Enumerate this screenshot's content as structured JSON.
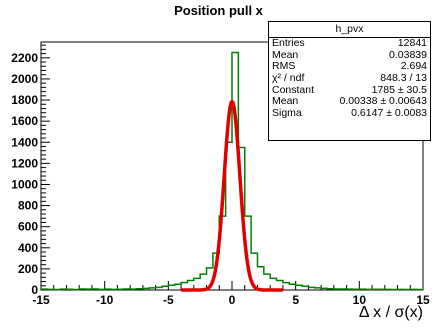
{
  "chart_data": {
    "type": "histogram",
    "title": "Position pull x",
    "xlabel": "Δ x / σ(x)",
    "ylabel": "",
    "xlim": [
      -15,
      15
    ],
    "ylim": [
      0,
      2350
    ],
    "x_ticks": [
      -15,
      -10,
      -5,
      0,
      5,
      10,
      15
    ],
    "y_ticks": [
      0,
      200,
      400,
      600,
      800,
      1000,
      1200,
      1400,
      1600,
      1800,
      2000,
      2200
    ],
    "bin_width": 0.5,
    "histogram": {
      "name": "h_pvx",
      "color": "#008000",
      "bins_x": [
        -15,
        -14.5,
        -14,
        -13.5,
        -13,
        -12.5,
        -12,
        -11.5,
        -11,
        -10.5,
        -10,
        -9.5,
        -9,
        -8.5,
        -8,
        -7.5,
        -7,
        -6.5,
        -6,
        -5.5,
        -5,
        -4.5,
        -4,
        -3.5,
        -3,
        -2.5,
        -2,
        -1.5,
        -1,
        -0.5,
        0,
        0.5,
        1,
        1.5,
        2,
        2.5,
        3,
        3.5,
        4,
        4.5,
        5,
        5.5,
        6,
        6.5,
        7,
        7.5,
        8,
        8.5,
        9,
        9.5,
        10,
        10.5,
        11,
        11.5,
        12,
        12.5,
        13,
        13.5,
        14,
        14.5
      ],
      "counts": [
        8,
        6,
        5,
        8,
        7,
        5,
        9,
        8,
        10,
        6,
        8,
        6,
        7,
        9,
        8,
        12,
        15,
        20,
        25,
        35,
        45,
        55,
        70,
        90,
        110,
        150,
        210,
        350,
        700,
        1400,
        2250,
        1350,
        700,
        350,
        220,
        150,
        110,
        90,
        70,
        55,
        45,
        35,
        25,
        20,
        15,
        12,
        10,
        9,
        8,
        7,
        8,
        6,
        7,
        7,
        6,
        5,
        6,
        5,
        6,
        5
      ]
    },
    "fit": {
      "type": "gaussian",
      "color": "#e00000",
      "constant": 1785,
      "mean": 0.00338,
      "sigma": 0.6147
    },
    "stats": {
      "title": "h_pvx",
      "rows": [
        {
          "label": "Entries",
          "value": "12841"
        },
        {
          "label": "Mean",
          "value": "0.03839"
        },
        {
          "label": "RMS",
          "value": "2.694"
        },
        {
          "label": "χ² / ndf",
          "value": "848.3 / 13"
        },
        {
          "label": "Constant",
          "value": "1785 ± 30.5"
        },
        {
          "label": "Mean",
          "value": "0.00338 ± 0.00643"
        },
        {
          "label": "Sigma",
          "value": "0.6147 ± 0.0083"
        }
      ]
    }
  }
}
